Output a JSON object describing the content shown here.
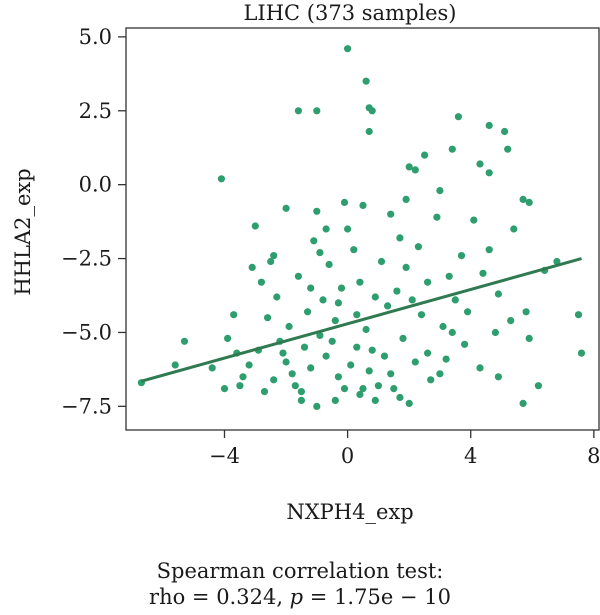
{
  "chart_data": {
    "type": "scatter",
    "title": "LIHC (373 samples)",
    "xlabel": "NXPH4_exp",
    "ylabel": "HHLA2_exp",
    "xlim": [
      -7.2,
      8.2
    ],
    "ylim": [
      -8.3,
      5.3
    ],
    "xticks": [
      -4,
      0,
      4,
      8
    ],
    "xtick_labels": [
      "−4",
      "0",
      "4",
      "8"
    ],
    "yticks": [
      5.0,
      2.5,
      0.0,
      -2.5,
      -5.0,
      -7.5
    ],
    "ytick_labels": [
      "5.0",
      "2.5",
      "0.0",
      "−2.5",
      "−5.0",
      "−7.5"
    ],
    "grid": false,
    "point_color": "#2e9e6e",
    "fit_color": "#2f7a50",
    "fit_line": {
      "x": [
        -6.7,
        7.6
      ],
      "y": [
        -6.65,
        -2.5
      ]
    },
    "points": [
      [
        0.0,
        4.6
      ],
      [
        0.6,
        3.5
      ],
      [
        -1.6,
        2.5
      ],
      [
        -1.0,
        2.5
      ],
      [
        0.8,
        2.5
      ],
      [
        0.7,
        2.6
      ],
      [
        0.7,
        1.8
      ],
      [
        3.6,
        2.3
      ],
      [
        4.6,
        2.0
      ],
      [
        5.1,
        1.8
      ],
      [
        -4.1,
        0.2
      ],
      [
        2.0,
        0.6
      ],
      [
        2.2,
        0.5
      ],
      [
        2.5,
        1.0
      ],
      [
        3.4,
        1.2
      ],
      [
        5.2,
        1.2
      ],
      [
        4.6,
        0.4
      ],
      [
        4.3,
        0.7
      ],
      [
        -2.0,
        -0.8
      ],
      [
        -0.1,
        -0.6
      ],
      [
        1.9,
        -0.5
      ],
      [
        3.0,
        -0.2
      ],
      [
        5.7,
        -0.5
      ],
      [
        5.9,
        -0.6
      ],
      [
        -3.0,
        -1.4
      ],
      [
        -1.0,
        -0.9
      ],
      [
        0.5,
        -0.7
      ],
      [
        -5.6,
        -6.1
      ],
      [
        -5.3,
        -5.3
      ],
      [
        -6.7,
        -6.7
      ],
      [
        -4.4,
        -6.2
      ],
      [
        -4.0,
        -6.9
      ],
      [
        -3.6,
        -5.7
      ],
      [
        -3.7,
        -4.4
      ],
      [
        -3.4,
        -6.5
      ],
      [
        -3.1,
        -2.8
      ],
      [
        -2.8,
        -3.3
      ],
      [
        -2.5,
        -2.6
      ],
      [
        -2.2,
        -5.3
      ],
      [
        -2.0,
        -6.0
      ],
      [
        -1.5,
        -7.0
      ],
      [
        -1.0,
        -7.5
      ],
      [
        -0.4,
        -7.3
      ],
      [
        0.5,
        -6.9
      ],
      [
        1.2,
        -5.8
      ],
      [
        1.7,
        -7.2
      ],
      [
        2.0,
        -7.4
      ],
      [
        2.7,
        -6.6
      ],
      [
        3.2,
        -5.9
      ],
      [
        3.8,
        -5.4
      ],
      [
        4.3,
        -6.2
      ],
      [
        4.8,
        -5.0
      ],
      [
        5.3,
        -4.6
      ],
      [
        5.7,
        -7.4
      ],
      [
        6.2,
        -6.8
      ],
      [
        7.5,
        -4.4
      ],
      [
        7.6,
        -5.7
      ],
      [
        6.4,
        -2.9
      ],
      [
        5.8,
        -4.3
      ],
      [
        4.9,
        -3.7
      ],
      [
        4.6,
        -2.2
      ],
      [
        4.1,
        -1.2
      ],
      [
        3.7,
        -2.4
      ],
      [
        3.5,
        -3.9
      ],
      [
        3.1,
        -4.8
      ],
      [
        2.6,
        -3.3
      ],
      [
        2.3,
        -2.1
      ],
      [
        1.9,
        -2.8
      ],
      [
        1.6,
        -3.6
      ],
      [
        1.3,
        -4.1
      ],
      [
        1.1,
        -2.6
      ],
      [
        0.9,
        -3.8
      ],
      [
        0.6,
        -4.9
      ],
      [
        0.4,
        -3.3
      ],
      [
        0.2,
        -2.2
      ],
      [
        0.0,
        -1.5
      ],
      [
        -0.2,
        -3.5
      ],
      [
        -0.4,
        -4.6
      ],
      [
        -0.6,
        -2.7
      ],
      [
        -0.8,
        -3.9
      ],
      [
        -1.1,
        -1.9
      ],
      [
        -1.3,
        -4.3
      ],
      [
        -1.6,
        -3.1
      ],
      [
        -1.9,
        -4.8
      ],
      [
        -2.3,
        -3.8
      ],
      [
        -2.6,
        -4.5
      ],
      [
        -2.9,
        -5.6
      ],
      [
        -3.2,
        -6.1
      ],
      [
        -2.4,
        -6.6
      ],
      [
        -1.8,
        -6.4
      ],
      [
        -1.2,
        -6.2
      ],
      [
        -0.7,
        -5.8
      ],
      [
        -0.3,
        -6.5
      ],
      [
        0.1,
        -6.1
      ],
      [
        0.3,
        -5.5
      ],
      [
        0.7,
        -6.3
      ],
      [
        1.0,
        -6.8
      ],
      [
        1.4,
        -6.4
      ],
      [
        1.8,
        -5.2
      ],
      [
        2.2,
        -6.0
      ],
      [
        2.6,
        -5.7
      ],
      [
        3.0,
        -6.4
      ],
      [
        3.4,
        -5.0
      ],
      [
        -1.4,
        -5.5
      ],
      [
        -0.9,
        -5.1
      ],
      [
        -0.5,
        -5.3
      ],
      [
        0.8,
        -5.6
      ],
      [
        -2.1,
        -5.7
      ],
      [
        -1.7,
        -6.8
      ],
      [
        0.4,
        -7.1
      ],
      [
        -0.1,
        -6.9
      ],
      [
        1.5,
        -6.9
      ],
      [
        -3.5,
        -6.8
      ],
      [
        -2.7,
        -7.0
      ],
      [
        2.4,
        -4.4
      ],
      [
        4.4,
        -3.0
      ],
      [
        6.8,
        -2.6
      ],
      [
        5.4,
        -1.5
      ],
      [
        1.4,
        -1.0
      ],
      [
        -0.9,
        -2.3
      ],
      [
        -0.3,
        -4.0
      ],
      [
        0.3,
        -4.4
      ],
      [
        -1.2,
        -3.5
      ],
      [
        -2.4,
        -2.4
      ],
      [
        1.7,
        -1.8
      ],
      [
        2.9,
        -1.1
      ],
      [
        3.9,
        -4.3
      ],
      [
        4.9,
        -6.5
      ],
      [
        5.9,
        -5.2
      ],
      [
        3.3,
        -3.1
      ],
      [
        2.1,
        -3.9
      ],
      [
        -0.7,
        -1.5
      ],
      [
        -3.9,
        -5.2
      ],
      [
        -1.5,
        -7.3
      ],
      [
        0.9,
        -7.3
      ]
    ]
  },
  "stats": {
    "line1": "Spearman correlation test:",
    "rho_text": "rho = 0.324, ",
    "p_symbol": "p",
    "p_text": " = 1.75e − 10"
  }
}
